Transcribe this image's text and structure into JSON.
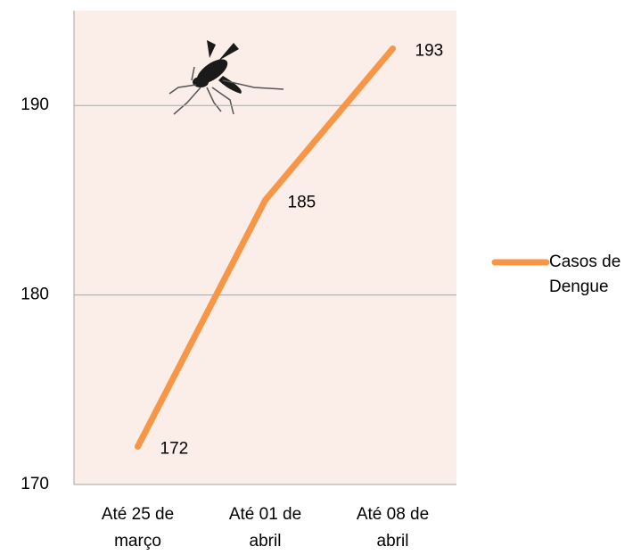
{
  "chart_data": {
    "type": "line",
    "categories": [
      "Até 25 de março",
      "Até 01 de abril",
      "Até 08 de abril"
    ],
    "series": [
      {
        "name": "Casos de Dengue",
        "color": "#f79646",
        "values": [
          172,
          185,
          193
        ]
      }
    ],
    "ylim": [
      170,
      195
    ],
    "yticks": [
      170,
      180,
      190
    ],
    "grid": true,
    "plot_background": "#fbeee8",
    "legend": "right"
  }
}
